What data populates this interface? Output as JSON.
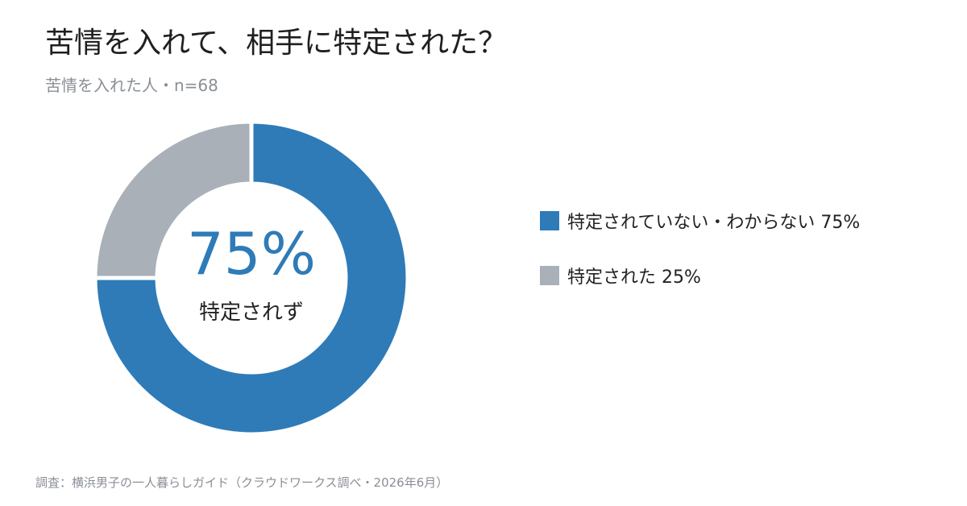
{
  "title": "苦情を入れて、相手に特定された？",
  "subtitle": "苦情を入れた人・n=68",
  "center": {
    "value": "75%",
    "label": "特定されず"
  },
  "legend": [
    {
      "label": "特定されていない・わからない 75%"
    },
    {
      "label": "特定された 25%"
    }
  ],
  "footnote": "調査：横浜男子の一人暮らしガイド（クラウドワークス調べ・2026年6月）",
  "chart_data": {
    "type": "pie",
    "donut": true,
    "categories": [
      "特定されていない・わからない",
      "特定された"
    ],
    "values": [
      75,
      25
    ],
    "unit": "%",
    "colors": [
      "#2e7bb8",
      "#a9b0b8"
    ],
    "legend_position": "right"
  }
}
